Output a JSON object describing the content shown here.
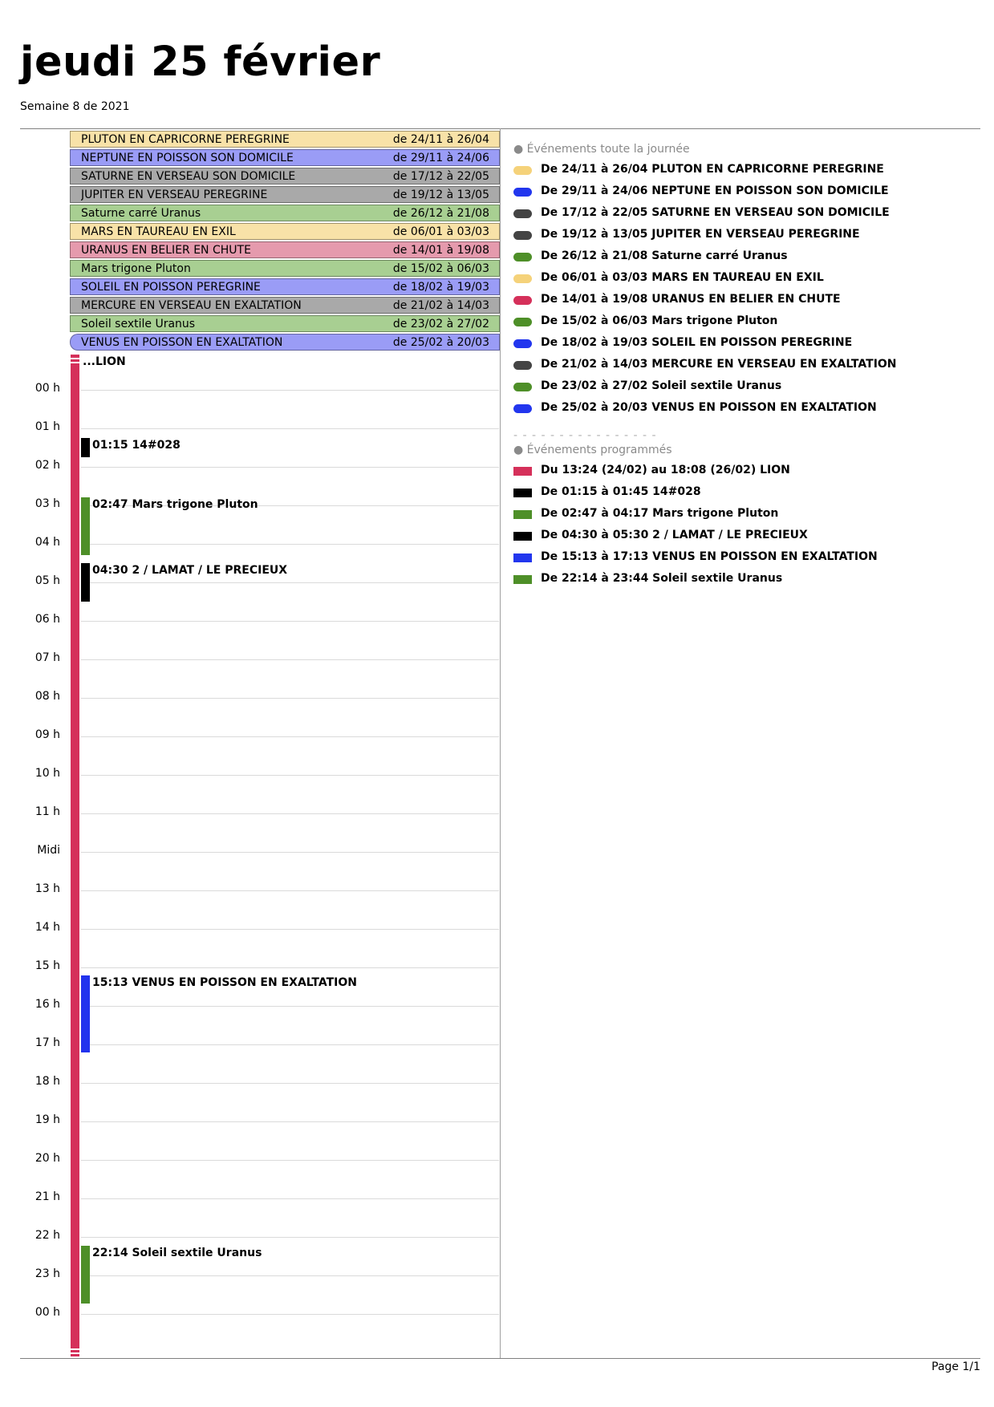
{
  "header": {
    "title": "jeudi 25 février",
    "subtitle": "Semaine 8 de 2021"
  },
  "allday": [
    {
      "name": "PLUTON EN CAPRICORNE PEREGRINE",
      "dates": "de 24/11 à 26/04",
      "color": "#f8e2a8"
    },
    {
      "name": "NEPTUNE EN POISSON SON DOMICILE",
      "dates": "de 29/11 à 24/06",
      "color": "#9a9cf6"
    },
    {
      "name": "SATURNE EN VERSEAU SON DOMICILE",
      "dates": "de 17/12 à 22/05",
      "color": "#a9a9a9"
    },
    {
      "name": "JUPITER EN VERSEAU PEREGRINE",
      "dates": "de 19/12 à 13/05",
      "color": "#a9a9a9"
    },
    {
      "name": "Saturne carré Uranus",
      "dates": "de 26/12 à 21/08",
      "color": "#a8cf92"
    },
    {
      "name": "MARS EN TAUREAU EN EXIL",
      "dates": "de 06/01 à 03/03",
      "color": "#f8e2a8"
    },
    {
      "name": "URANUS EN BELIER EN CHUTE",
      "dates": "de 14/01 à 19/08",
      "color": "#e59aad"
    },
    {
      "name": "Mars trigone Pluton",
      "dates": "de 15/02 à 06/03",
      "color": "#a8cf92"
    },
    {
      "name": "SOLEIL EN POISSON PEREGRINE",
      "dates": "de 18/02 à 19/03",
      "color": "#9a9cf6"
    },
    {
      "name": "MERCURE EN VERSEAU EN EXALTATION",
      "dates": "de 21/02 à 14/03",
      "color": "#a9a9a9"
    },
    {
      "name": "Soleil sextile Uranus",
      "dates": "de 23/02 à 27/02",
      "color": "#a8cf92"
    },
    {
      "name": "VENUS EN POISSON EN EXALTATION",
      "dates": "de 25/02 à 20/03",
      "color": "#9a9cf6"
    }
  ],
  "hours": [
    "00 h",
    "01 h",
    "02 h",
    "03 h",
    "04 h",
    "05 h",
    "06 h",
    "07 h",
    "08 h",
    "09 h",
    "10 h",
    "11 h",
    "Midi",
    "13 h",
    "14 h",
    "15 h",
    "16 h",
    "17 h",
    "18 h",
    "19 h",
    "20 h",
    "21 h",
    "22 h",
    "23 h",
    "00 h"
  ],
  "lion_label": "...LION",
  "timed_events": [
    {
      "label": "01:15 14#028",
      "start": 1.25,
      "end": 1.75,
      "color": "#000000"
    },
    {
      "label": "02:47 Mars trigone Pluton",
      "start": 2.783,
      "end": 4.283,
      "color": "#4e8f28"
    },
    {
      "label": "04:30 2 / LAMAT / LE PRECIEUX",
      "start": 4.5,
      "end": 5.5,
      "color": "#000000"
    },
    {
      "label": "15:13 VENUS EN POISSON EN EXALTATION",
      "start": 15.217,
      "end": 17.217,
      "color": "#2233ee"
    },
    {
      "label": "22:14 Soleil sextile Uranus",
      "start": 22.233,
      "end": 23.733,
      "color": "#4e8f28"
    }
  ],
  "side": {
    "allday_heading": "● Événements toute la journée",
    "allday_items": [
      {
        "text": "De 24/11 à 26/04 PLUTON EN CAPRICORNE PEREGRINE",
        "color": "#f5d27a"
      },
      {
        "text": "De 29/11 à 24/06 NEPTUNE EN POISSON SON DOMICILE",
        "color": "#2236ee"
      },
      {
        "text": "De 17/12 à 22/05 SATURNE EN VERSEAU SON DOMICILE",
        "color": "#444444"
      },
      {
        "text": "De 19/12 à 13/05 JUPITER EN VERSEAU PEREGRINE",
        "color": "#444444"
      },
      {
        "text": "De 26/12 à 21/08 Saturne carré Uranus",
        "color": "#4e8f28"
      },
      {
        "text": "De 06/01 à 03/03 MARS EN TAUREAU EN EXIL",
        "color": "#f5d27a"
      },
      {
        "text": "De 14/01 à 19/08 URANUS EN BELIER EN CHUTE",
        "color": "#d5305a"
      },
      {
        "text": "De 15/02 à 06/03 Mars trigone Pluton",
        "color": "#4e8f28"
      },
      {
        "text": "De 18/02 à 19/03 SOLEIL EN POISSON PEREGRINE",
        "color": "#2236ee"
      },
      {
        "text": "De 21/02 à 14/03 MERCURE EN VERSEAU EN EXALTATION",
        "color": "#444444"
      },
      {
        "text": "De 23/02 à 27/02 Soleil sextile Uranus",
        "color": "#4e8f28"
      },
      {
        "text": "De 25/02 à 20/03 VENUS EN POISSON EN EXALTATION",
        "color": "#2236ee"
      }
    ],
    "separator": "- - - - - - - - - - - - - - - -",
    "timed_heading": "● Événements programmés",
    "timed_items": [
      {
        "text": "Du 13:24 (24/02) au 18:08 (26/02) LION",
        "color": "#d5305a"
      },
      {
        "text": "De 01:15 à 01:45 14#028",
        "color": "#000000"
      },
      {
        "text": "De 02:47 à 04:17 Mars trigone Pluton",
        "color": "#4e8f28"
      },
      {
        "text": "De 04:30 à 05:30 2 / LAMAT / LE PRECIEUX",
        "color": "#000000"
      },
      {
        "text": "De 15:13 à 17:13 VENUS EN POISSON EN EXALTATION",
        "color": "#2236ee"
      },
      {
        "text": "De 22:14 à 23:44 Soleil sextile Uranus",
        "color": "#4e8f28"
      }
    ]
  },
  "footer": {
    "page": "Page 1/1"
  }
}
